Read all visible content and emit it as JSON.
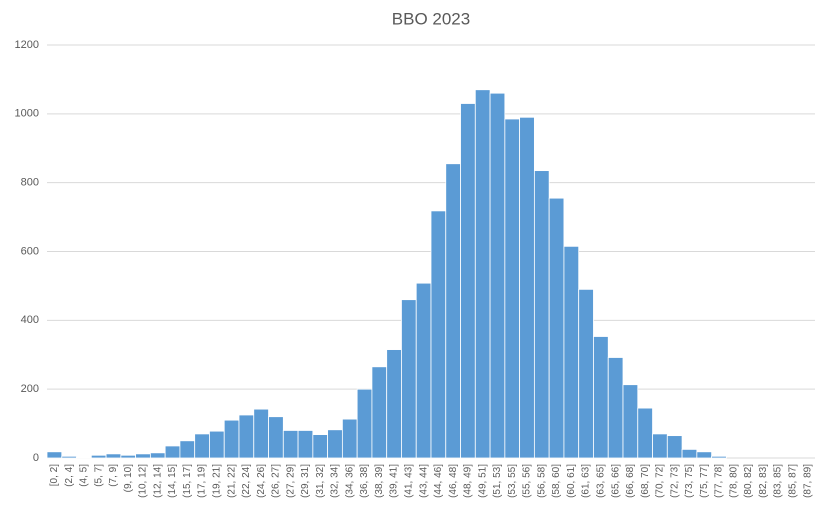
{
  "chart_data": {
    "type": "bar",
    "title": "BBO 2023",
    "categories": [
      "[0, 2]",
      "(2, 4]",
      "(4, 5]",
      "(5, 7]",
      "(7, 9]",
      "(9, 10]",
      "(10, 12]",
      "(12, 14]",
      "(14, 15]",
      "(15, 17]",
      "(17, 19]",
      "(19, 21]",
      "(21, 22]",
      "(22, 24]",
      "(24, 26]",
      "(26, 27]",
      "(27, 29]",
      "(29, 31]",
      "(31, 32]",
      "(32, 34]",
      "(34, 36]",
      "(36, 38]",
      "(38, 39]",
      "(39, 41]",
      "(41, 43]",
      "(43, 44]",
      "(44, 46]",
      "(46, 48]",
      "(48, 49]",
      "(49, 51]",
      "(51, 53]",
      "(53, 55]",
      "(55, 56]",
      "(56, 58]",
      "(58, 60]",
      "(60, 61]",
      "(61, 63]",
      "(63, 65]",
      "(65, 66]",
      "(66, 68]",
      "(68, 70]",
      "(70, 72]",
      "(72, 73]",
      "(73, 75]",
      "(75, 77]",
      "(77, 78]",
      "(78, 80]",
      "(80, 82]",
      "(82, 83]",
      "(83, 85]",
      "(85, 87]",
      "(87, 89]"
    ],
    "values": [
      18,
      5,
      2,
      8,
      12,
      8,
      12,
      15,
      35,
      50,
      70,
      78,
      110,
      125,
      142,
      120,
      80,
      80,
      68,
      82,
      113,
      200,
      265,
      315,
      460,
      508,
      718,
      855,
      1030,
      1070,
      1060,
      985,
      990,
      835,
      755,
      615,
      490,
      353,
      292,
      213,
      145,
      70,
      65,
      25,
      18,
      5,
      0,
      0,
      0,
      0,
      0,
      0
    ],
    "color": "#5b9bd5",
    "ylim": [
      0,
      1200
    ],
    "yticks": [
      0,
      200,
      400,
      600,
      800,
      1000,
      1200
    ],
    "grid": true
  }
}
